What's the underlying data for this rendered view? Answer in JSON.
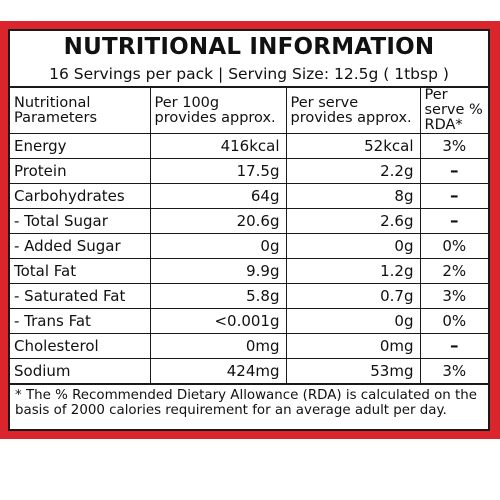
{
  "title": "NUTRITIONAL INFORMATION",
  "serving_line": "16 Servings per pack  |  Serving Size: 12.5g ( 1tbsp )",
  "colors": {
    "border_red": "#d9252b",
    "text": "#111111"
  },
  "table": {
    "headers": [
      "Nutritional Parameters",
      "Per 100g provides approx.",
      "Per serve provides approx.",
      "Per serve % RDA*"
    ],
    "rows": [
      {
        "param": "Energy",
        "per100": "416kcal",
        "perserve": "52kcal",
        "rda": "3%"
      },
      {
        "param": "Protein",
        "per100": "17.5g",
        "perserve": "2.2g",
        "rda": "–"
      },
      {
        "param": "Carbohydrates",
        "per100": "64g",
        "perserve": "8g",
        "rda": "–"
      },
      {
        "param": "- Total Sugar",
        "per100": "20.6g",
        "perserve": "2.6g",
        "rda": "–"
      },
      {
        "param": "- Added Sugar",
        "per100": "0g",
        "perserve": "0g",
        "rda": "0%"
      },
      {
        "param": "Total Fat",
        "per100": "9.9g",
        "perserve": "1.2g",
        "rda": "2%"
      },
      {
        "param": "- Saturated Fat",
        "per100": "5.8g",
        "perserve": "0.7g",
        "rda": "3%"
      },
      {
        "param": "- Trans Fat",
        "per100": "<0.001g",
        "perserve": "0g",
        "rda": "0%"
      },
      {
        "param": "Cholesterol",
        "per100": "0mg",
        "perserve": "0mg",
        "rda": "–"
      },
      {
        "param": "Sodium",
        "per100": "424mg",
        "perserve": "53mg",
        "rda": "3%"
      }
    ]
  },
  "footnote": {
    "line1": "* The % Recommended Dietary Allowance (RDA) is calculated on the",
    "line2": "basis of 2000 calories requirement for an average adult per day."
  }
}
